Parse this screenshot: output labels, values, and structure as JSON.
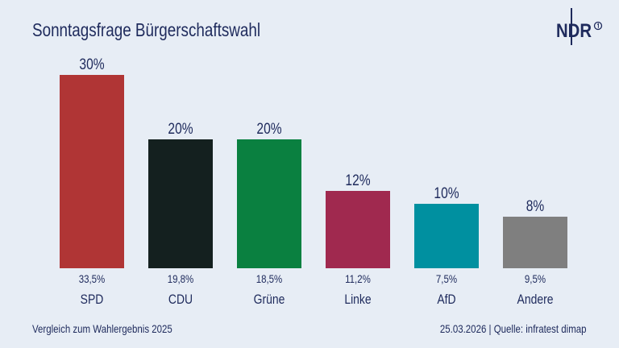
{
  "title": "Sonntagsfrage Bürgerschaftswahl",
  "logo": "NDR",
  "footer": {
    "left": "Vergleich zum Wahlergebnis 2025",
    "right": "25.03.2026 | Quelle: infratest dimap"
  },
  "chart_data": {
    "type": "bar",
    "title": "Sonntagsfrage Bürgerschaftswahl",
    "categories": [
      "SPD",
      "CDU",
      "Grüne",
      "Linke",
      "AfD",
      "Andere"
    ],
    "values": [
      30,
      20,
      20,
      12,
      10,
      8
    ],
    "value_labels": [
      "30%",
      "20%",
      "20%",
      "12%",
      "10%",
      "8%"
    ],
    "comparison_labels": [
      "33,5%",
      "19,8%",
      "18,5%",
      "11,2%",
      "7,5%",
      "9,5%"
    ],
    "comparison_name": "Vergleich zum Wahlergebnis 2025",
    "colors": [
      "#b03535",
      "#14201f",
      "#0a8040",
      "#a0294f",
      "#0090a0",
      "#7f7f7f"
    ],
    "ylim": [
      0,
      30
    ],
    "grid": false,
    "xlabel": "",
    "ylabel": ""
  }
}
